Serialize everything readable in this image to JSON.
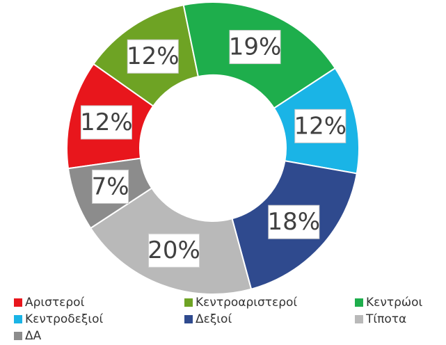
{
  "chart_data": {
    "type": "donut",
    "categories": [
      "Αριστεροί",
      "Κεντροαριστεροί",
      "Κεντρώοι",
      "Κεντροδεξιοί",
      "Δεξιοί",
      "Τίποτα",
      "ΔΑ"
    ],
    "values": [
      12,
      12,
      19,
      12,
      18,
      20,
      7
    ],
    "value_labels": [
      "12%",
      "12%",
      "19%",
      "12%",
      "18%",
      "20%",
      "7%"
    ],
    "colors": [
      "#e8161c",
      "#6ea324",
      "#1eae4c",
      "#1ab4e6",
      "#2f4a8e",
      "#b9b9b9",
      "#8c8c8c"
    ],
    "legend": "bottom"
  }
}
